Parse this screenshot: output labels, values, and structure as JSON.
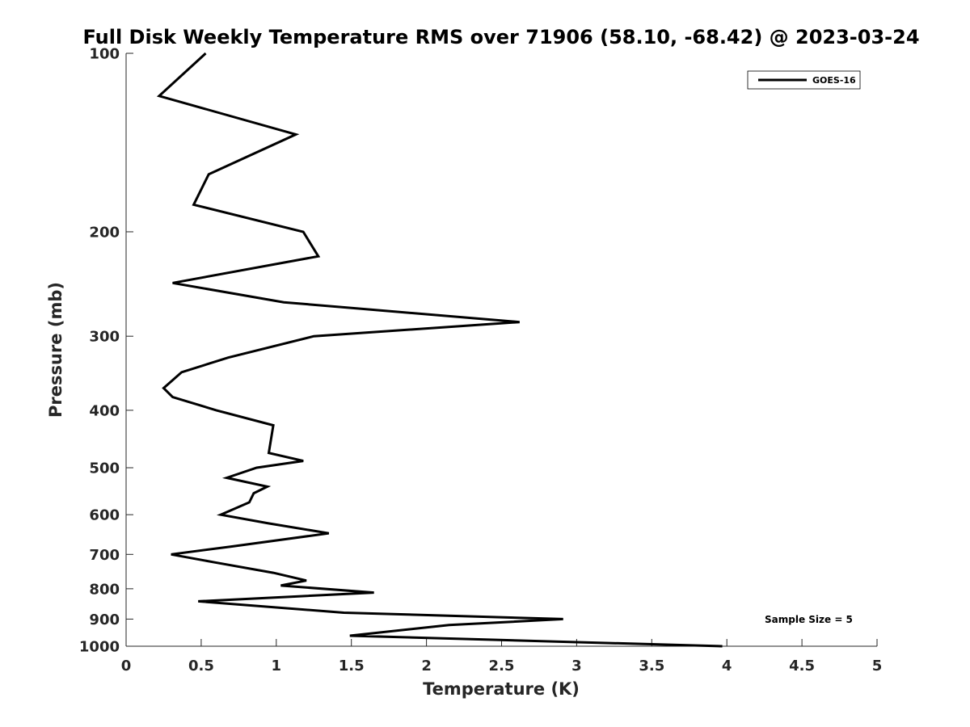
{
  "chart_data": {
    "type": "line",
    "title": "Full Disk Weekly Temperature RMS over 71906 (58.10, -68.42) @ 2023-03-24",
    "xlabel": "Temperature (K)",
    "ylabel": "Pressure (mb)",
    "xlim": [
      0,
      5
    ],
    "ylim": [
      100,
      1000
    ],
    "yscale": "log",
    "y_reversed": true,
    "grid": false,
    "legend_position": "top-right",
    "x_ticks": [
      0,
      0.5,
      1,
      1.5,
      2,
      2.5,
      3,
      3.5,
      4,
      4.5,
      5
    ],
    "x_tick_labels": [
      "0",
      "0.5",
      "1",
      "1.5",
      "2",
      "2.5",
      "3",
      "3.5",
      "4",
      "4.5",
      "5"
    ],
    "y_ticks": [
      100,
      200,
      300,
      400,
      500,
      600,
      700,
      800,
      900,
      1000
    ],
    "y_tick_labels": [
      "100",
      "200",
      "300",
      "400",
      "500",
      "600",
      "700",
      "800",
      "900",
      "1000"
    ],
    "series": [
      {
        "name": "GOES-16",
        "color": "#000000",
        "points": [
          {
            "x": 0.53,
            "p": 100
          },
          {
            "x": 0.22,
            "p": 118
          },
          {
            "x": 1.13,
            "p": 137
          },
          {
            "x": 0.55,
            "p": 160
          },
          {
            "x": 0.45,
            "p": 180
          },
          {
            "x": 1.18,
            "p": 200
          },
          {
            "x": 1.28,
            "p": 220
          },
          {
            "x": 0.31,
            "p": 244
          },
          {
            "x": 1.05,
            "p": 263
          },
          {
            "x": 2.62,
            "p": 284
          },
          {
            "x": 1.25,
            "p": 300
          },
          {
            "x": 0.68,
            "p": 326
          },
          {
            "x": 0.37,
            "p": 345
          },
          {
            "x": 0.25,
            "p": 367
          },
          {
            "x": 0.31,
            "p": 380
          },
          {
            "x": 0.6,
            "p": 400
          },
          {
            "x": 0.98,
            "p": 424
          },
          {
            "x": 0.95,
            "p": 472
          },
          {
            "x": 1.18,
            "p": 487
          },
          {
            "x": 0.87,
            "p": 500
          },
          {
            "x": 0.67,
            "p": 520
          },
          {
            "x": 0.94,
            "p": 538
          },
          {
            "x": 0.85,
            "p": 552
          },
          {
            "x": 0.82,
            "p": 572
          },
          {
            "x": 0.63,
            "p": 600
          },
          {
            "x": 0.94,
            "p": 620
          },
          {
            "x": 1.35,
            "p": 645
          },
          {
            "x": 0.7,
            "p": 679
          },
          {
            "x": 0.3,
            "p": 700
          },
          {
            "x": 0.59,
            "p": 722
          },
          {
            "x": 0.98,
            "p": 752
          },
          {
            "x": 1.2,
            "p": 775
          },
          {
            "x": 1.03,
            "p": 790
          },
          {
            "x": 1.65,
            "p": 812
          },
          {
            "x": 0.48,
            "p": 840
          },
          {
            "x": 1.45,
            "p": 878
          },
          {
            "x": 2.91,
            "p": 900
          },
          {
            "x": 2.15,
            "p": 921
          },
          {
            "x": 1.49,
            "p": 960
          },
          {
            "x": 3.97,
            "p": 1000
          }
        ]
      }
    ],
    "annotations": [
      {
        "text": "Sample Size = 5",
        "position": "bottom-right"
      }
    ]
  }
}
